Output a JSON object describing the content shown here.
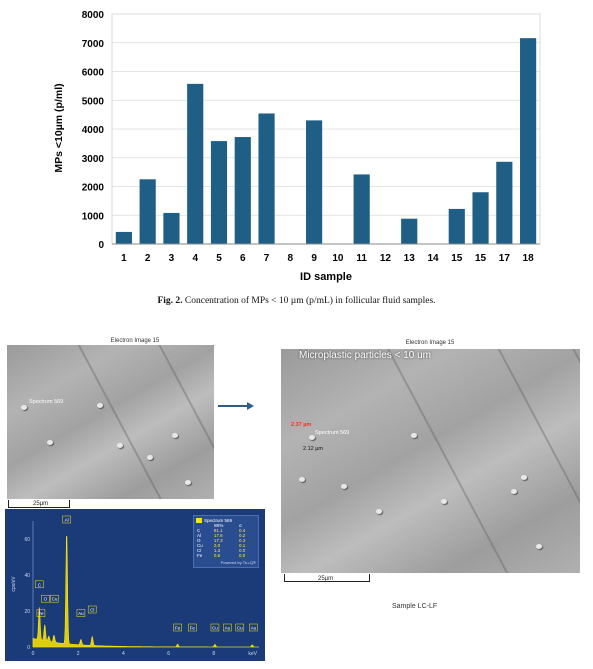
{
  "chart_data": {
    "type": "bar",
    "categories": [
      "1",
      "2",
      "3",
      "4",
      "5",
      "6",
      "7",
      "8",
      "9",
      "10",
      "11",
      "12",
      "13",
      "14",
      "15",
      "15",
      "17",
      "18"
    ],
    "values": [
      420,
      2250,
      1080,
      5570,
      3580,
      3720,
      4540,
      0,
      4300,
      0,
      2420,
      0,
      880,
      0,
      1220,
      1800,
      2860,
      7160
    ],
    "xlabel": "ID sample",
    "ylabel": "MPs <10µm (p/ml)",
    "ylim": [
      0,
      8000
    ],
    "yticks": [
      0,
      1000,
      2000,
      3000,
      4000,
      5000,
      6000,
      7000,
      8000
    ],
    "bar_color": "#1f5f86"
  },
  "caption": {
    "label": "Fig. 2.",
    "text": "Concentration of MPs < 10 µm (p/mL) in follicular fluid samples."
  },
  "sem_left": {
    "title": "Electron Image 15",
    "spectrum_label": "Spectrum 569",
    "scale_label": "25µm"
  },
  "sem_right": {
    "title": "Electron Image 15",
    "overlay_title": "Microplastic particles < 10 um",
    "spectrum_label": "Spectrum 569",
    "measure_red": "2.37 µm",
    "measure_black": "2.12 µm",
    "scale_label": "25µm",
    "sample_label": "Sample LC-LF"
  },
  "eds": {
    "legend_title": "Spectrum 569",
    "col_wt": "Wt%",
    "col_sigma": "σ",
    "rows": [
      {
        "el": "C",
        "wt": "81.1",
        "sig": "0.4"
      },
      {
        "el": "Al",
        "wt": "17.6",
        "sig": "0.2"
      },
      {
        "el": "O",
        "wt": "17.3",
        "sig": "0.3"
      },
      {
        "el": "Cu",
        "wt": "2.0",
        "sig": "0.1"
      },
      {
        "el": "Cl",
        "wt": "1.3",
        "sig": "0.0"
      },
      {
        "el": "Fe",
        "wt": "0.6",
        "sig": "0.0"
      }
    ],
    "powered": "Powered by Tru-Q®",
    "y_axis_label": "cps/eV",
    "y_ticks": [
      "0",
      "20",
      "40",
      "60"
    ],
    "x_ticks": [
      "0",
      "2",
      "4",
      "6",
      "8"
    ],
    "x_unit": "keV",
    "peak_labels": [
      "C",
      "O",
      "Cu",
      "Fe",
      "Al",
      "Au",
      "Cl",
      "Fe",
      "Fe",
      "Cu",
      "Au",
      "Cu",
      "Au"
    ],
    "trace_color": "#ffe600"
  }
}
